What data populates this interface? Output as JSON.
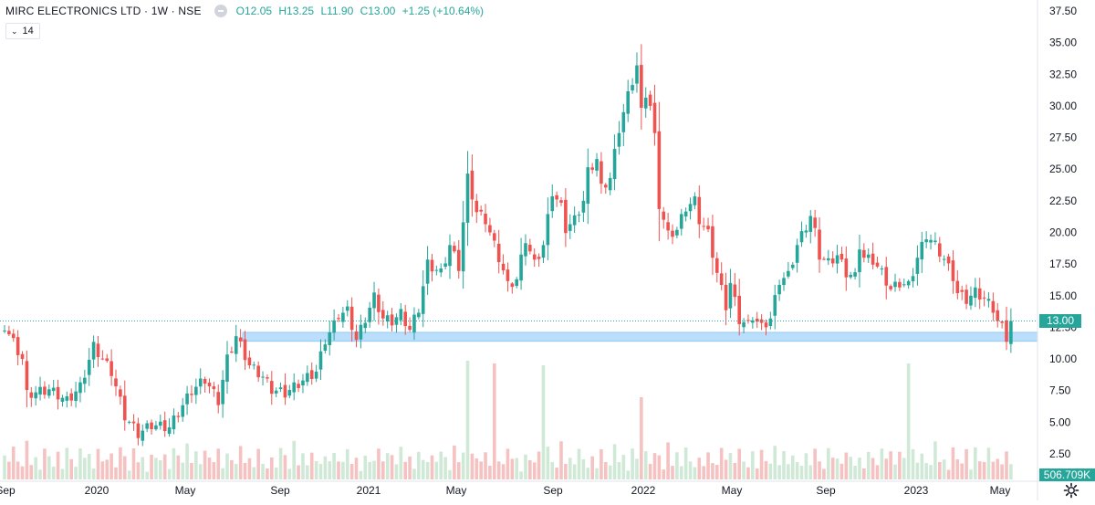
{
  "header": {
    "title": "MIRC ELECTRONICS LTD · 1W · NSE",
    "open": "O12.05",
    "high": "H13.25",
    "low": "L11.90",
    "close": "C13.00",
    "change": "+1.25 (+10.64%)"
  },
  "indicator": {
    "toggle": "⌄",
    "period": "14"
  },
  "last_price_label": "13.00",
  "volume_label": "506.709K",
  "icons": {
    "settings": "gear-icon"
  },
  "colors": {
    "up": "#26a69a",
    "down": "#ef5350",
    "up_volume": "#cfe9d6",
    "down_volume": "#f5c1c1",
    "support_zone": "#bbdefb"
  },
  "chart_data": {
    "type": "candlestick",
    "timeframe": "1W",
    "y_ticks": [
      "37.50",
      "35.00",
      "32.50",
      "30.00",
      "27.50",
      "25.00",
      "22.50",
      "20.00",
      "17.50",
      "15.00",
      "12.50",
      "10.00",
      "7.50",
      "5.00",
      "2.50"
    ],
    "x_ticks": [
      "Sep",
      "2020",
      "May",
      "Sep",
      "2021",
      "May",
      "Sep",
      "2022",
      "May",
      "Sep",
      "2023",
      "May"
    ],
    "ylim": [
      0,
      38.5
    ],
    "last_price": 13.0,
    "support_zone": [
      11.4,
      12.1
    ],
    "last_volume": "506.709K",
    "series": [
      {
        "name": "close",
        "anchors": [
          [
            0,
            12.6
          ],
          [
            4,
            10.0
          ],
          [
            5,
            7.2
          ],
          [
            10,
            7.6
          ],
          [
            14,
            6.7
          ],
          [
            17,
            7.8
          ],
          [
            20,
            11.0
          ],
          [
            24,
            9.0
          ],
          [
            27,
            5.5
          ],
          [
            30,
            4.1
          ],
          [
            33,
            4.8
          ],
          [
            37,
            4.6
          ],
          [
            42,
            7.5
          ],
          [
            45,
            8.4
          ],
          [
            48,
            6.7
          ],
          [
            50,
            10.0
          ],
          [
            52,
            11.8
          ],
          [
            55,
            9.5
          ],
          [
            58,
            8.6
          ],
          [
            60,
            7.6
          ],
          [
            63,
            7.3
          ],
          [
            67,
            8.3
          ],
          [
            70,
            9.0
          ],
          [
            72,
            11.5
          ],
          [
            74,
            12.7
          ],
          [
            75,
            13.5
          ],
          [
            77,
            13.8
          ],
          [
            79,
            11.5
          ],
          [
            81,
            13.2
          ],
          [
            83,
            14.9
          ],
          [
            85,
            13.2
          ],
          [
            87,
            13.0
          ],
          [
            89,
            13.6
          ],
          [
            91,
            12.3
          ],
          [
            93,
            14.0
          ],
          [
            95,
            17.5
          ],
          [
            98,
            16.8
          ],
          [
            100,
            19.0
          ],
          [
            102,
            17.3
          ],
          [
            104,
            24.3
          ],
          [
            106,
            21.6
          ],
          [
            108,
            21.0
          ],
          [
            110,
            19.0
          ],
          [
            112,
            17.0
          ],
          [
            113,
            15.8
          ],
          [
            115,
            16.3
          ],
          [
            117,
            19.5
          ],
          [
            119,
            17.5
          ],
          [
            121,
            19.0
          ],
          [
            123,
            23.2
          ],
          [
            125,
            22.0
          ],
          [
            126,
            20.3
          ],
          [
            128,
            21.0
          ],
          [
            130,
            22.5
          ],
          [
            131,
            24.8
          ],
          [
            133,
            25.8
          ],
          [
            134,
            23.5
          ],
          [
            136,
            24.3
          ],
          [
            138,
            28.2
          ],
          [
            140,
            30.8
          ],
          [
            142,
            33.2
          ],
          [
            143,
            29.5
          ],
          [
            144,
            31.0
          ],
          [
            145,
            30.0
          ],
          [
            146,
            27.5
          ],
          [
            147,
            22.2
          ],
          [
            149,
            19.8
          ],
          [
            151,
            20.2
          ],
          [
            153,
            22.0
          ],
          [
            155,
            22.5
          ],
          [
            156,
            21.0
          ],
          [
            158,
            19.9
          ],
          [
            160,
            16.8
          ],
          [
            162,
            14.2
          ],
          [
            163,
            16.0
          ],
          [
            165,
            13.1
          ],
          [
            167,
            12.7
          ],
          [
            168,
            13.4
          ],
          [
            170,
            12.5
          ],
          [
            172,
            13.2
          ],
          [
            174,
            16.2
          ],
          [
            176,
            16.6
          ],
          [
            178,
            19.0
          ],
          [
            180,
            20.5
          ],
          [
            181,
            21.3
          ],
          [
            182,
            20.0
          ],
          [
            183,
            18.2
          ],
          [
            185,
            17.6
          ],
          [
            187,
            18.2
          ],
          [
            189,
            16.8
          ],
          [
            191,
            16.5
          ],
          [
            192,
            19.0
          ],
          [
            193,
            18.0
          ],
          [
            195,
            17.8
          ],
          [
            197,
            16.8
          ],
          [
            199,
            15.5
          ],
          [
            201,
            16.0
          ],
          [
            203,
            15.8
          ],
          [
            205,
            18.0
          ],
          [
            207,
            19.8
          ],
          [
            209,
            19.0
          ],
          [
            211,
            17.9
          ],
          [
            213,
            16.5
          ],
          [
            214,
            15.2
          ],
          [
            216,
            14.7
          ],
          [
            218,
            15.3
          ],
          [
            220,
            14.8
          ],
          [
            222,
            14.0
          ],
          [
            223,
            13.0
          ],
          [
            224,
            12.5
          ],
          [
            225,
            11.7
          ],
          [
            226,
            13.0
          ]
        ]
      }
    ]
  }
}
